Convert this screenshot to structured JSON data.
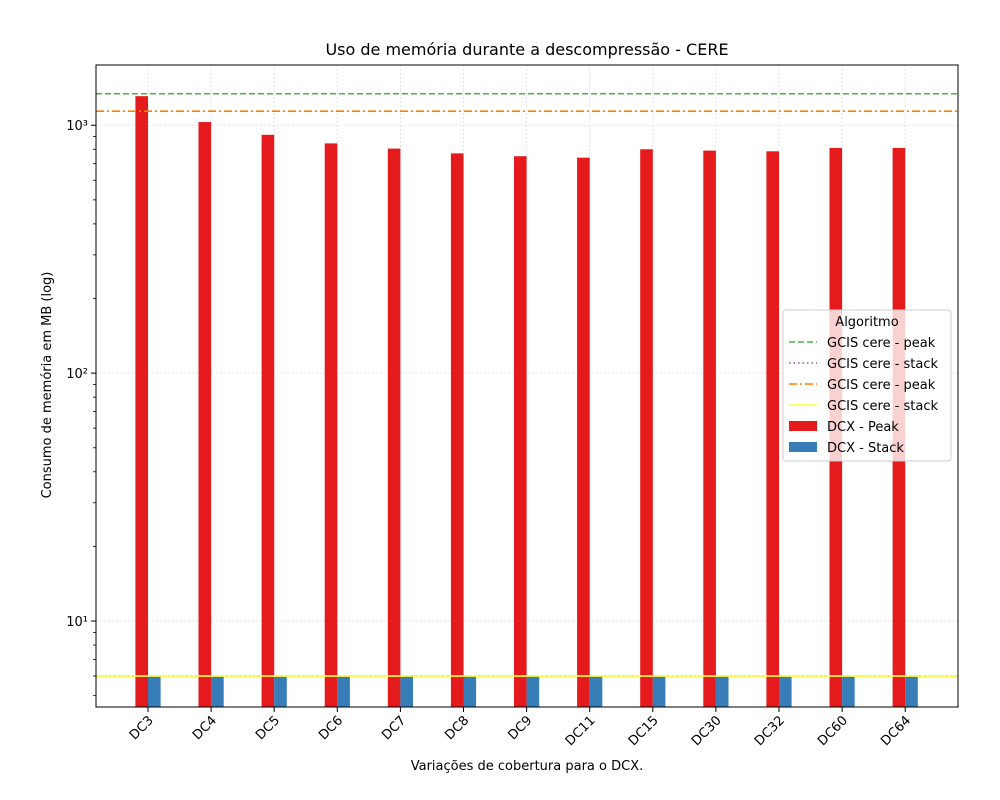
{
  "chart_data": {
    "type": "bar",
    "title": "Uso de memória durante a descompressão -  CERE",
    "xlabel": "Variações de cobertura para o DCX.",
    "ylabel": "Consumo de memória em MB (log)",
    "yscale": "log",
    "ylim": [
      4.5,
      1750
    ],
    "y_ticks": [
      {
        "value": 10,
        "label": "10¹"
      },
      {
        "value": 100,
        "label": "10²"
      },
      {
        "value": 1000,
        "label": "10³"
      }
    ],
    "grid": true,
    "categories": [
      "DC3",
      "DC4",
      "DC5",
      "DC6",
      "DC7",
      "DC8",
      "DC9",
      "DC11",
      "DC15",
      "DC30",
      "DC32",
      "DC60",
      "DC64"
    ],
    "series": [
      {
        "name": "DCX - Peak",
        "color": "#e41a1c",
        "values": [
          1310,
          1030,
          915,
          845,
          805,
          770,
          750,
          740,
          800,
          790,
          785,
          810,
          810
        ]
      },
      {
        "name": "DCX - Stack",
        "color": "#377eb8",
        "values": [
          6.0,
          6.0,
          6.0,
          6.0,
          6.0,
          6.0,
          6.0,
          6.0,
          6.0,
          6.0,
          6.0,
          6.0,
          6.0
        ]
      }
    ],
    "reference_lines": [
      {
        "name": "GCIS cere - peak",
        "value": 1340,
        "color": "#4daf4a",
        "style": "dashed"
      },
      {
        "name": "GCIS cere - stack",
        "value": 6.0,
        "color": "#984ea3",
        "style": "dotted"
      },
      {
        "name": "GCIS cere - peak",
        "value": 1140,
        "color": "#ff7f00",
        "style": "dashdot"
      },
      {
        "name": "GCIS cere - stack",
        "value": 6.0,
        "color": "#ffff33",
        "style": "solid"
      }
    ],
    "legend": {
      "title": "Algoritmo",
      "placement": "center-right",
      "entries": [
        {
          "label": "GCIS cere - peak",
          "kind": "line",
          "color": "#4daf4a",
          "style": "dashed"
        },
        {
          "label": "GCIS cere - stack",
          "kind": "line",
          "color": "#984ea3",
          "style": "dotted"
        },
        {
          "label": "GCIS cere - peak",
          "kind": "line",
          "color": "#ff7f00",
          "style": "dashdot"
        },
        {
          "label": "GCIS cere - stack",
          "kind": "line",
          "color": "#ffff33",
          "style": "solid"
        },
        {
          "label": "DCX - Peak",
          "kind": "bar",
          "color": "#e41a1c"
        },
        {
          "label": "DCX - Stack",
          "kind": "bar",
          "color": "#377eb8"
        }
      ]
    }
  }
}
